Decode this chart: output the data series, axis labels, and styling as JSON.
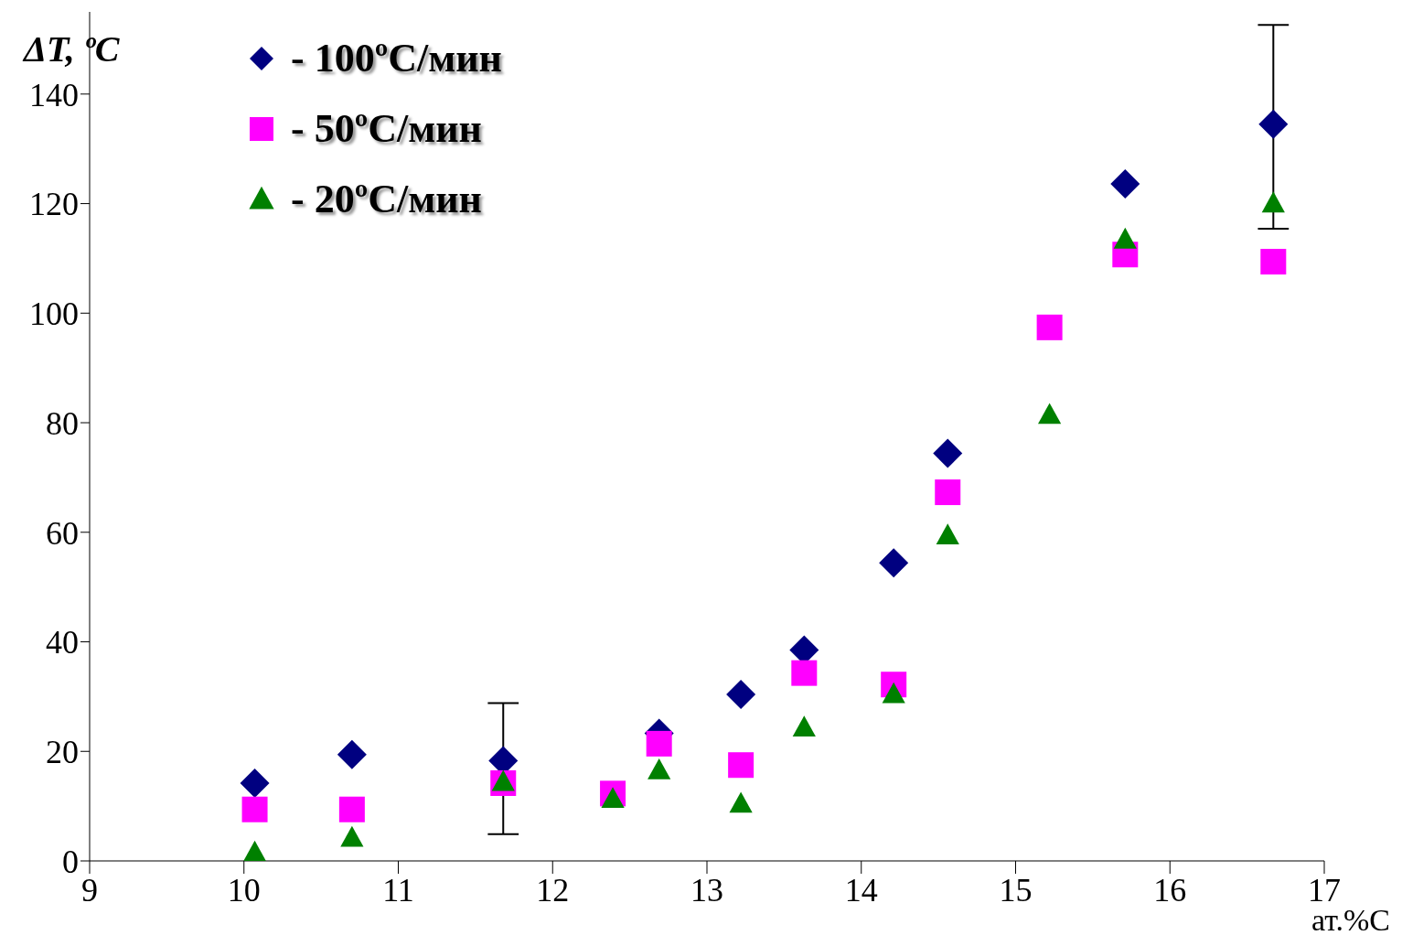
{
  "chart_data": {
    "type": "scatter",
    "ylabel": "ΔT, ºC",
    "xlabel": "ат.%C",
    "x": [
      10.07,
      10.7,
      11.68,
      12.39,
      12.69,
      13.22,
      13.63,
      14.21,
      14.56,
      15.22,
      15.71,
      16.67
    ],
    "series": [
      {
        "name": "- 100ºC/мин",
        "color": "#000080",
        "marker": "diamond",
        "values": [
          14.2,
          19.4,
          18.3,
          null,
          23.3,
          30.4,
          38.5,
          54.4,
          74.4,
          null,
          123.6,
          134.5
        ],
        "errors": [
          null,
          null,
          [
            4.9,
            28.8
          ],
          null,
          null,
          null,
          null,
          null,
          null,
          null,
          null,
          [
            115.4,
            152.6
          ]
        ]
      },
      {
        "name": "- 50ºC/мин",
        "color": "#ff00ff",
        "marker": "square",
        "values": [
          9.4,
          9.4,
          14.2,
          12.3,
          21.4,
          17.5,
          34.3,
          32.2,
          67.3,
          97.4,
          110.7,
          109.4
        ]
      },
      {
        "name": "- 20ºC/мин",
        "color": "#008000",
        "marker": "triangle",
        "values": [
          1.5,
          4.2,
          14.4,
          11.3,
          16.5,
          10.4,
          24.3,
          30.4,
          59.4,
          81.4,
          113.4,
          120
        ]
      }
    ],
    "xlim": [
      9,
      17
    ],
    "xticks": [
      9,
      10,
      11,
      12,
      13,
      14,
      15,
      16,
      17
    ],
    "ylim": [
      0,
      155
    ],
    "yticks": [
      0,
      20,
      40,
      60,
      80,
      100,
      120,
      140
    ],
    "grid": false,
    "legend": "top left"
  }
}
